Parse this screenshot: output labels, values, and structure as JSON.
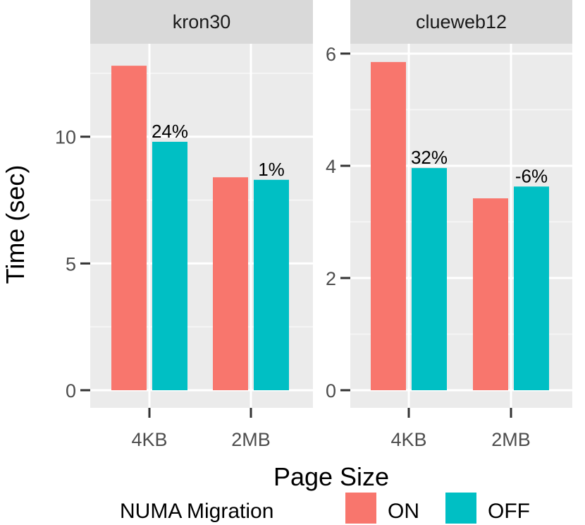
{
  "chart_data": {
    "type": "bar",
    "ylabel": "Time (sec)",
    "xlabel": "Page Size",
    "categories": [
      "4KB",
      "2MB"
    ],
    "legend": {
      "title": "NUMA Migration",
      "position": "bottom",
      "items": [
        {
          "name": "ON",
          "color": "#F8766D"
        },
        {
          "name": "OFF",
          "color": "#00BFC4"
        }
      ]
    },
    "panels": [
      {
        "title": "kron30",
        "ylim": [
          0,
          13.5
        ],
        "yticks": [
          0,
          5,
          10
        ],
        "series": [
          {
            "name": "ON",
            "values": [
              12.8,
              8.4
            ]
          },
          {
            "name": "OFF",
            "values": [
              9.8,
              8.3
            ]
          }
        ],
        "annotations": [
          "24%",
          "1%"
        ]
      },
      {
        "title": "clueweb12",
        "ylim": [
          0,
          6.1
        ],
        "yticks": [
          0,
          2,
          4,
          6
        ],
        "series": [
          {
            "name": "ON",
            "values": [
              5.85,
              3.42
            ]
          },
          {
            "name": "OFF",
            "values": [
              3.96,
              3.63
            ]
          }
        ],
        "annotations": [
          "32%",
          "-6%"
        ]
      }
    ],
    "grid": true
  }
}
